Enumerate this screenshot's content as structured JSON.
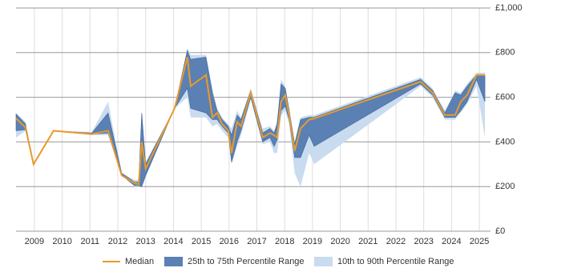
{
  "chart_data": {
    "type": "percentile-band-line",
    "x": [
      2008.34,
      2008.68,
      2008.97,
      2009.69,
      2011.07,
      2011.65,
      2012.14,
      2012.6,
      2012.75,
      2012.86,
      2013.0,
      2014.04,
      2014.5,
      2014.62,
      2015.17,
      2015.4,
      2015.57,
      2015.75,
      2015.97,
      2016.09,
      2016.29,
      2016.43,
      2016.78,
      2017.21,
      2017.47,
      2017.62,
      2017.73,
      2017.87,
      2018.02,
      2018.16,
      2018.36,
      2018.57,
      2018.88,
      2019.06,
      2022.89,
      2023.32,
      2023.76,
      2024.13,
      2024.33,
      2024.56,
      2024.9,
      2025.2
    ],
    "series": [
      {
        "name": "Median",
        "color": "#e89a2c",
        "values": [
          505,
          465,
          300,
          450,
          435,
          450,
          250,
          215,
          210,
          400,
          280,
          550,
          780,
          650,
          700,
          510,
          530,
          480,
          450,
          350,
          490,
          470,
          620,
          420,
          440,
          430,
          420,
          580,
          610,
          520,
          360,
          460,
          500,
          505,
          670,
          620,
          520,
          520,
          580,
          610,
          700,
          700
        ]
      },
      {
        "name": "25th to 75th Percentile Range",
        "color": "#5a80b4",
        "lower": [
          450,
          455,
          300,
          450,
          435,
          440,
          250,
          205,
          205,
          200,
          250,
          550,
          640,
          550,
          530,
          500,
          500,
          470,
          440,
          310,
          400,
          450,
          600,
          400,
          420,
          380,
          410,
          540,
          560,
          500,
          330,
          330,
          430,
          380,
          660,
          610,
          510,
          510,
          540,
          580,
          680,
          580
        ],
        "upper": [
          525,
          480,
          300,
          450,
          440,
          530,
          260,
          220,
          220,
          530,
          300,
          550,
          810,
          770,
          780,
          620,
          540,
          500,
          470,
          430,
          520,
          500,
          630,
          440,
          460,
          440,
          480,
          660,
          640,
          540,
          390,
          500,
          510,
          510,
          680,
          630,
          530,
          620,
          610,
          650,
          700,
          700
        ]
      },
      {
        "name": "10th to 90th Percentile Range",
        "color": "#c9dbef",
        "lower": [
          420,
          450,
          300,
          450,
          430,
          430,
          250,
          200,
          200,
          200,
          240,
          550,
          600,
          510,
          510,
          470,
          480,
          450,
          420,
          300,
          380,
          430,
          590,
          390,
          400,
          350,
          350,
          520,
          540,
          480,
          260,
          200,
          350,
          300,
          650,
          600,
          500,
          500,
          530,
          570,
          650,
          420
        ],
        "upper": [
          530,
          490,
          300,
          450,
          445,
          580,
          260,
          230,
          230,
          530,
          310,
          550,
          820,
          790,
          790,
          640,
          550,
          510,
          480,
          460,
          540,
          510,
          640,
          460,
          470,
          450,
          500,
          680,
          650,
          560,
          400,
          510,
          520,
          520,
          690,
          640,
          540,
          630,
          620,
          660,
          710,
          710
        ]
      }
    ],
    "xlim": [
      2008.34,
      2025.4
    ],
    "xticks": [
      2009,
      2010,
      2011,
      2012,
      2013,
      2014,
      2015,
      2016,
      2017,
      2018,
      2019,
      2020,
      2021,
      2022,
      2023,
      2024,
      2025
    ],
    "ylim": [
      0,
      1000
    ],
    "yticks": [
      {
        "value": 0,
        "label": "£0"
      },
      {
        "value": 200,
        "label": "£200"
      },
      {
        "value": 400,
        "label": "£400"
      },
      {
        "value": 600,
        "label": "£600"
      },
      {
        "value": 800,
        "label": "£800"
      },
      {
        "value": 1000,
        "label": "£1,000"
      }
    ],
    "grid": true,
    "legend": "bottom"
  }
}
